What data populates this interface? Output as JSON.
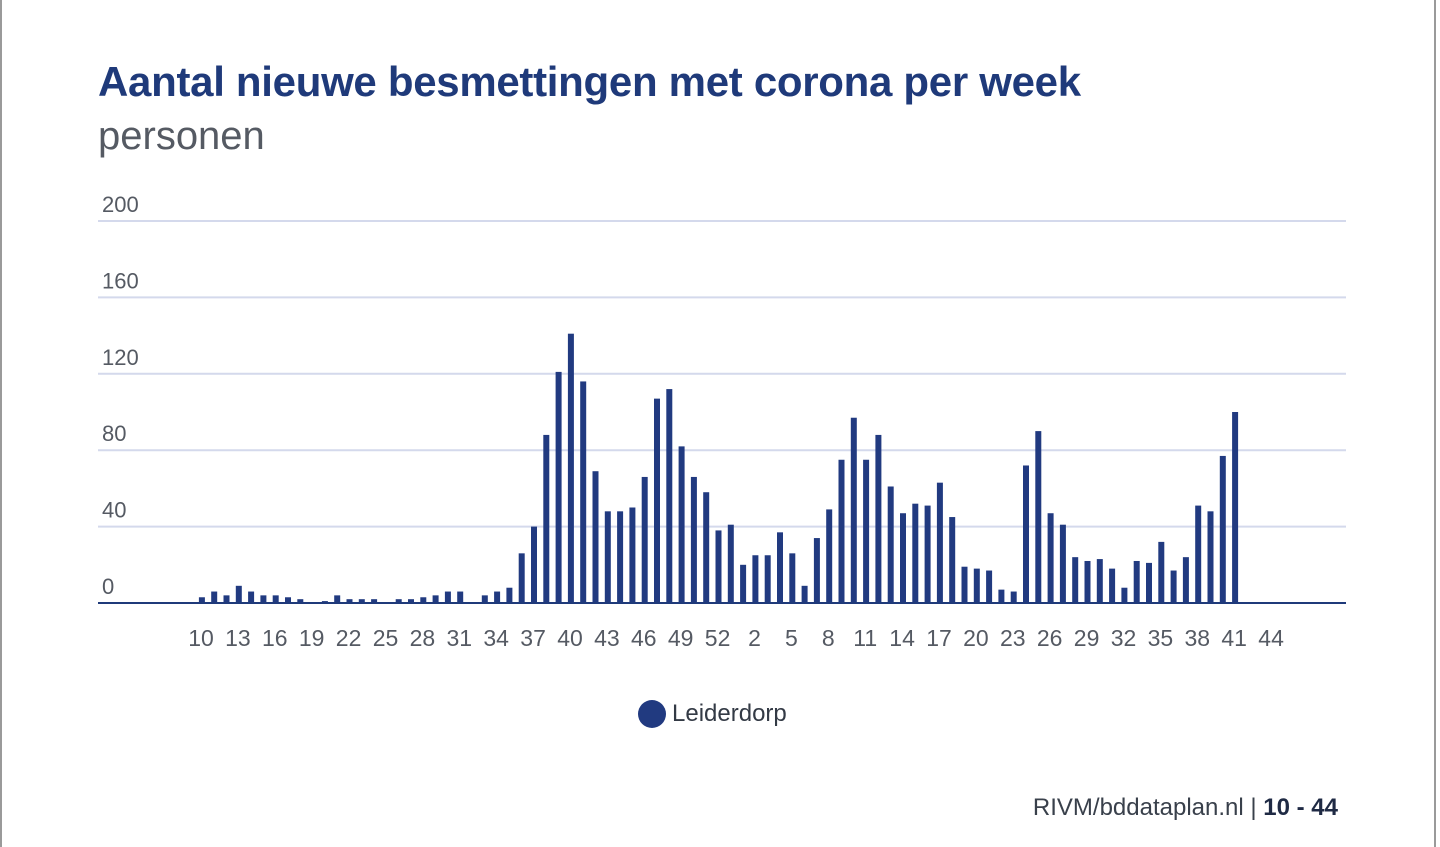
{
  "colors": {
    "bar": "#213a80",
    "title": "#1f3a7a",
    "grid": "#d4d9ec",
    "axis": "#1f3a7a",
    "tick_text": "#555a63"
  },
  "source": {
    "text": "RIVM/bddataplan.nl",
    "separator": " | ",
    "range": "10 - 44"
  },
  "chart_data": {
    "type": "bar",
    "title": "Aantal nieuwe besmettingen met corona per week",
    "subtitle": "personen",
    "xlabel": "",
    "ylabel": "",
    "ylim": [
      0,
      200
    ],
    "yticks": [
      0,
      40,
      80,
      120,
      160,
      200
    ],
    "grid": true,
    "legend_position": "bottom-center",
    "xtick_labels": [
      "10",
      "13",
      "16",
      "19",
      "22",
      "25",
      "28",
      "31",
      "34",
      "37",
      "40",
      "43",
      "46",
      "49",
      "52",
      "2",
      "5",
      "8",
      "11",
      "14",
      "17",
      "20",
      "23",
      "26",
      "29",
      "32",
      "35",
      "38",
      "41",
      "44"
    ],
    "categories": [
      "10",
      "11",
      "12",
      "13",
      "14",
      "15",
      "16",
      "17",
      "18",
      "19",
      "20",
      "21",
      "22",
      "23",
      "24",
      "25",
      "26",
      "27",
      "28",
      "29",
      "30",
      "31",
      "32",
      "33",
      "34",
      "35",
      "36",
      "37",
      "38",
      "39",
      "40",
      "41",
      "42",
      "43",
      "44",
      "45",
      "46",
      "47",
      "48",
      "49",
      "50",
      "51",
      "52",
      "53",
      "1",
      "2",
      "3",
      "4",
      "5",
      "6",
      "7",
      "8",
      "9",
      "10",
      "11",
      "12",
      "13",
      "14",
      "15",
      "16",
      "17",
      "18",
      "19",
      "20",
      "21",
      "22",
      "23",
      "24",
      "25",
      "26",
      "27",
      "28",
      "29",
      "30",
      "31",
      "32",
      "33",
      "34",
      "35",
      "36",
      "37",
      "38",
      "39",
      "40",
      "41",
      "42",
      "43",
      "44"
    ],
    "series": [
      {
        "name": "Leiderdorp",
        "values": [
          0,
          0,
          0,
          3,
          6,
          4,
          9,
          6,
          4,
          4,
          3,
          2,
          0,
          1,
          4,
          2,
          2,
          2,
          0,
          2,
          2,
          3,
          4,
          6,
          6,
          0,
          4,
          6,
          8,
          26,
          40,
          88,
          121,
          141,
          116,
          69,
          48,
          48,
          50,
          66,
          107,
          112,
          82,
          66,
          58,
          38,
          41,
          20,
          25,
          25,
          37,
          26,
          9,
          34,
          49,
          75,
          97,
          75,
          88,
          61,
          47,
          52,
          51,
          63,
          45,
          19,
          18,
          17,
          7,
          6,
          72,
          90,
          47,
          41,
          24,
          22,
          23,
          18,
          8,
          22,
          21,
          32,
          17,
          24,
          51,
          48,
          77,
          100
        ]
      }
    ]
  }
}
